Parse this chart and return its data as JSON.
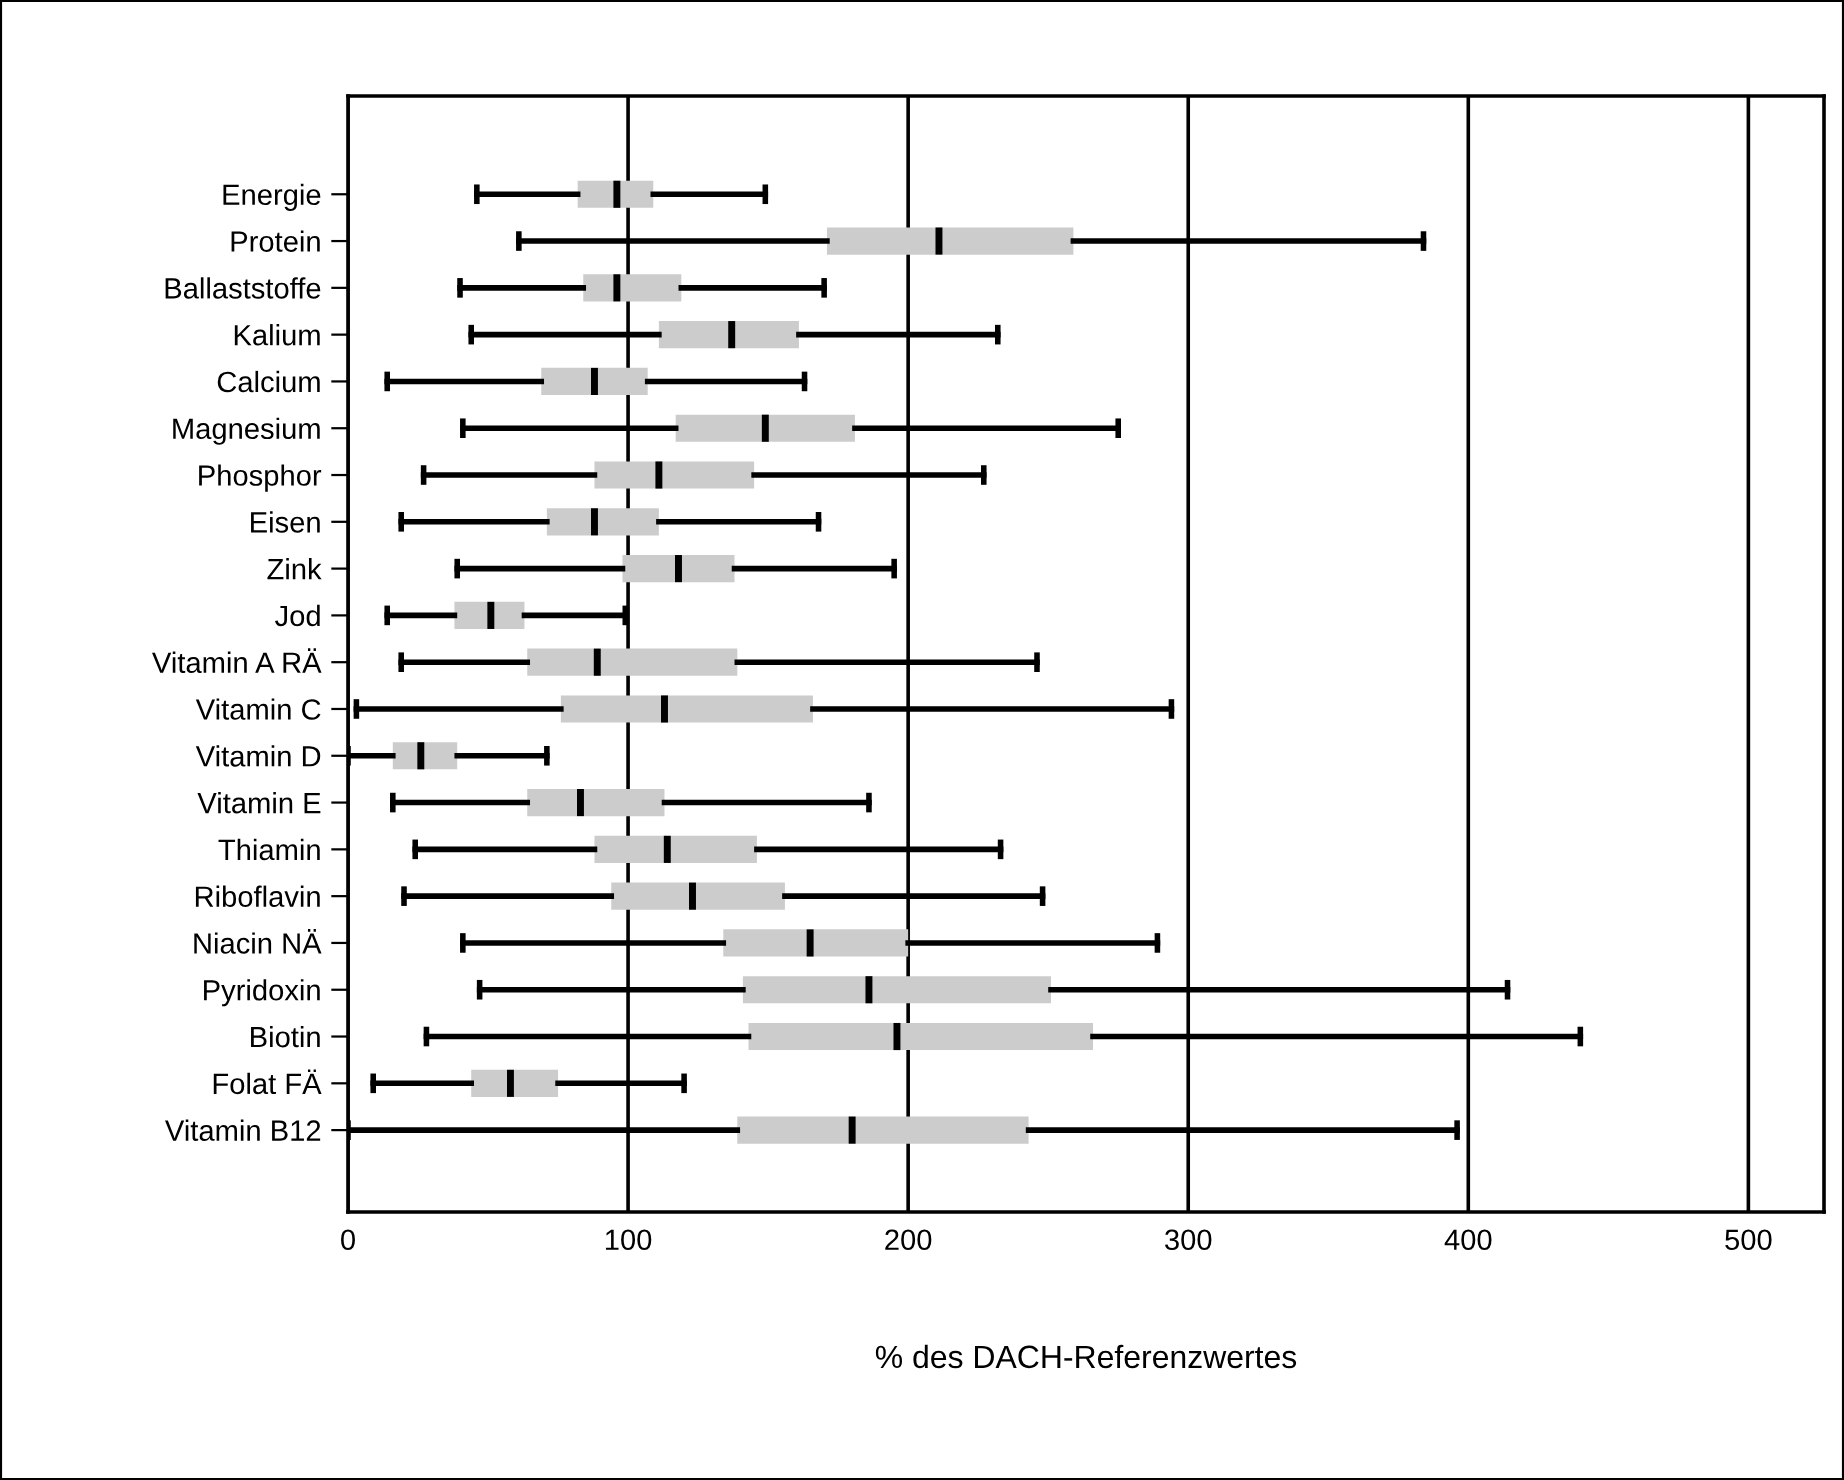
{
  "chart_data": {
    "type": "box",
    "orientation": "horizontal",
    "xlabel": "% des DACH-Referenzwertes",
    "xlim": [
      0,
      527
    ],
    "xticks": [
      0,
      100,
      200,
      300,
      400,
      500
    ],
    "grid": "x",
    "color": "#cccccc",
    "categories": [
      "Energie",
      "Protein",
      "Ballaststoffe",
      "Kalium",
      "Calcium",
      "Magnesium",
      "Phosphor",
      "Eisen",
      "Zink",
      "Jod",
      "Vitamin A RÄ",
      "Vitamin C",
      "Vitamin D",
      "Vitamin E",
      "Thiamin",
      "Riboflavin",
      "Niacin NÄ",
      "Pyridoxin",
      "Biotin",
      "Folat FÄ",
      "Vitamin B12"
    ],
    "boxes": [
      {
        "low": 46,
        "q1": 82,
        "median": 96,
        "q3": 109,
        "high": 149
      },
      {
        "low": 61,
        "q1": 171,
        "median": 211,
        "q3": 259,
        "high": 384
      },
      {
        "low": 40,
        "q1": 84,
        "median": 96,
        "q3": 119,
        "high": 170
      },
      {
        "low": 44,
        "q1": 111,
        "median": 137,
        "q3": 161,
        "high": 232
      },
      {
        "low": 14,
        "q1": 69,
        "median": 88,
        "q3": 107,
        "high": 163
      },
      {
        "low": 41,
        "q1": 117,
        "median": 149,
        "q3": 181,
        "high": 275
      },
      {
        "low": 27,
        "q1": 88,
        "median": 111,
        "q3": 145,
        "high": 227
      },
      {
        "low": 19,
        "q1": 71,
        "median": 88,
        "q3": 111,
        "high": 168
      },
      {
        "low": 39,
        "q1": 98,
        "median": 118,
        "q3": 138,
        "high": 195
      },
      {
        "low": 14,
        "q1": 38,
        "median": 51,
        "q3": 63,
        "high": 99
      },
      {
        "low": 19,
        "q1": 64,
        "median": 89,
        "q3": 139,
        "high": 246
      },
      {
        "low": 3,
        "q1": 76,
        "median": 113,
        "q3": 166,
        "high": 294
      },
      {
        "low": 0,
        "q1": 16,
        "median": 26,
        "q3": 39,
        "high": 71
      },
      {
        "low": 16,
        "q1": 64,
        "median": 83,
        "q3": 113,
        "high": 186
      },
      {
        "low": 24,
        "q1": 88,
        "median": 114,
        "q3": 146,
        "high": 233
      },
      {
        "low": 20,
        "q1": 94,
        "median": 123,
        "q3": 156,
        "high": 248
      },
      {
        "low": 41,
        "q1": 134,
        "median": 165,
        "q3": 200,
        "high": 289
      },
      {
        "low": 47,
        "q1": 141,
        "median": 186,
        "q3": 251,
        "high": 414
      },
      {
        "low": 28,
        "q1": 143,
        "median": 196,
        "q3": 266,
        "high": 440
      },
      {
        "low": 9,
        "q1": 44,
        "median": 58,
        "q3": 75,
        "high": 120
      },
      {
        "low": 0,
        "q1": 139,
        "median": 180,
        "q3": 243,
        "high": 396
      }
    ]
  }
}
